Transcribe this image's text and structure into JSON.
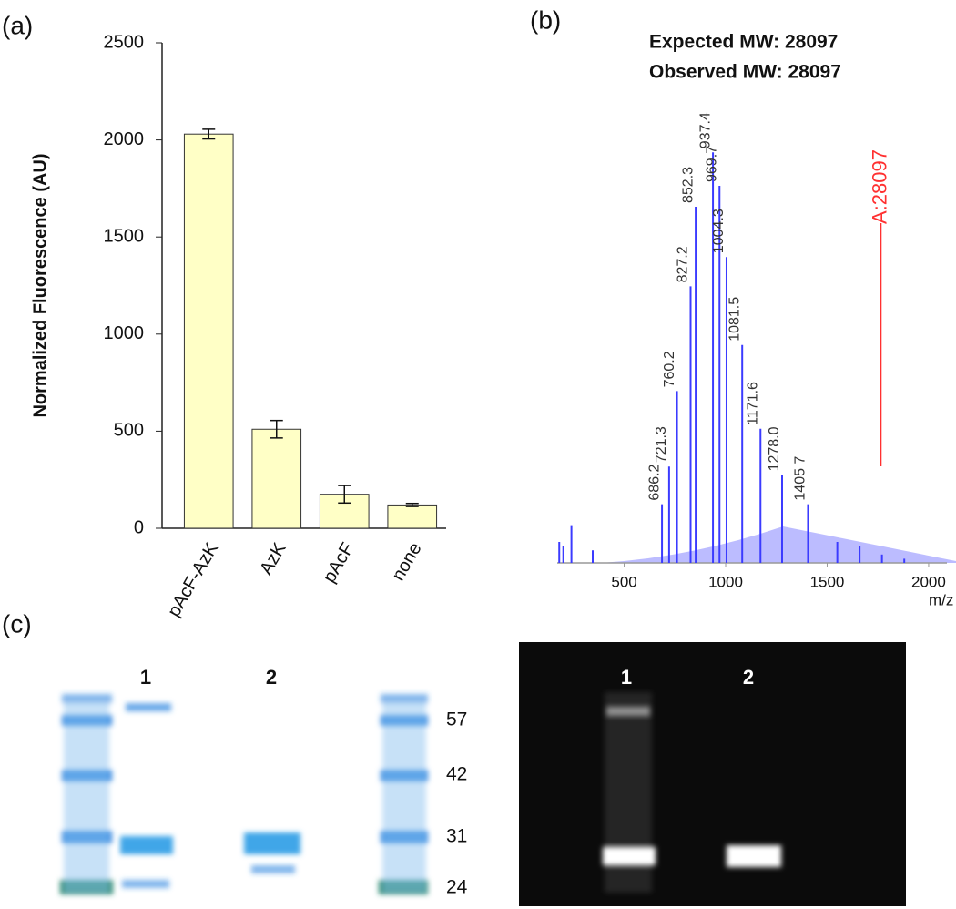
{
  "panel_labels": [
    "(a)",
    "(b)",
    "(c)"
  ],
  "chart_data": [
    {
      "type": "bar",
      "y_label": "Normalized Fluorescence (AU)",
      "categories": [
        "pAcF-AzK",
        "AzK",
        "pAcF",
        "none"
      ],
      "values": [
        2030,
        510,
        175,
        120
      ],
      "errors": [
        25,
        45,
        45,
        8
      ],
      "color": "#ffffc6",
      "ylim": [
        0,
        2500
      ],
      "yticks": [
        0,
        500,
        1000,
        1500,
        2000,
        2500
      ]
    },
    {
      "type": "stem",
      "title_lines": [
        "Expected MW: 28097",
        "Observed MW: 28097"
      ],
      "x_label": "m/z",
      "x": [
        180,
        200,
        240,
        345,
        686.2,
        721.3,
        760.2,
        827.2,
        852.3,
        937.4,
        969.7,
        1004.3,
        1081.5,
        1171.6,
        1278.0,
        1405.7,
        1550,
        1660,
        1770,
        1880
      ],
      "values": [
        5,
        4,
        9,
        3,
        14,
        23,
        41,
        66,
        85,
        98,
        90,
        73,
        52,
        32,
        21,
        14,
        5,
        4,
        2,
        1
      ],
      "value_labels": [
        null,
        null,
        null,
        null,
        "686.2",
        "721.3",
        "760.2",
        "827.2",
        "852.3",
        "937.4",
        "969.7",
        "1004.3",
        "1081.5",
        "1171.6",
        "1278.0",
        "1405 7",
        null,
        null,
        null,
        null
      ],
      "color": "#3b3bff",
      "xlim": [
        170,
        2090
      ],
      "ylim": [
        0,
        100
      ],
      "xticks": [
        500,
        1000,
        1500,
        2000
      ],
      "annotation": {
        "text": "A:28097",
        "x": 1765,
        "color": "#ff3030"
      }
    }
  ],
  "gels": {
    "coomassie": {
      "lanes": [
        "1",
        "2"
      ],
      "markers": [
        57,
        42,
        31,
        24
      ]
    },
    "fluorescence": {
      "lanes": [
        "1",
        "2"
      ]
    }
  }
}
